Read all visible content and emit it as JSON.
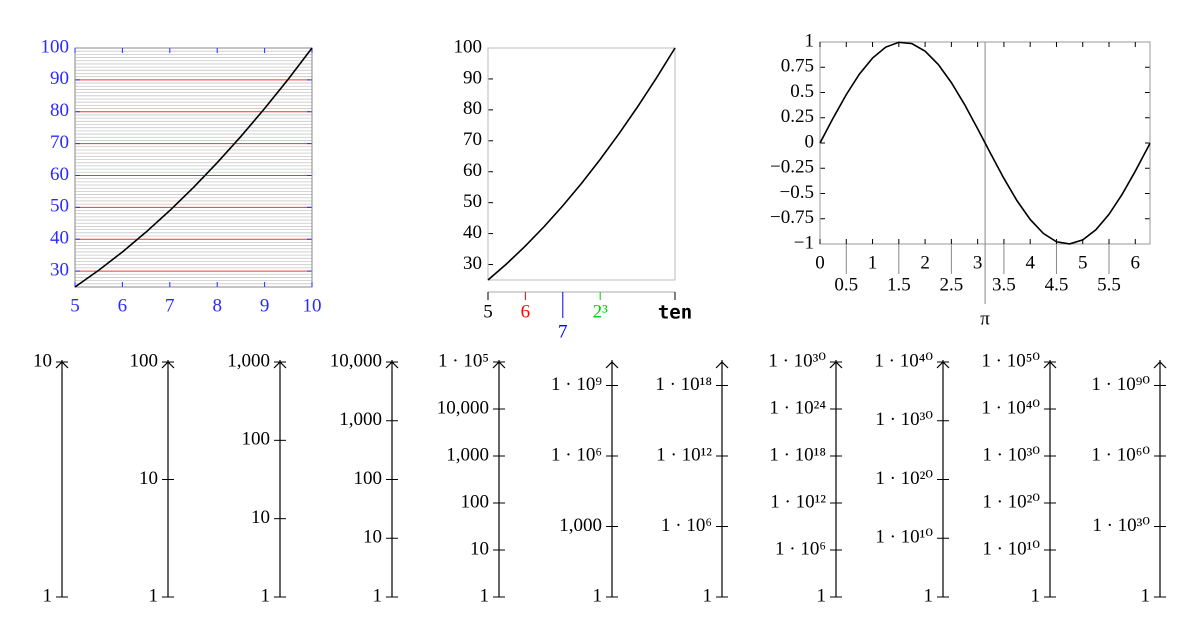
{
  "chart_data": [
    {
      "type": "line",
      "x": [
        5,
        5.5,
        6,
        6.5,
        7,
        7.5,
        8,
        8.5,
        9,
        9.5,
        10
      ],
      "values": [
        25,
        30.25,
        36,
        42.25,
        49,
        56.25,
        64,
        72.25,
        81,
        90.25,
        100
      ],
      "color": "#000000",
      "xlim": [
        5,
        10
      ],
      "ylim": [
        25,
        100
      ],
      "xticks": [
        5,
        6,
        7,
        8,
        9,
        10
      ],
      "yticks": [
        30,
        40,
        50,
        60,
        70,
        80,
        90,
        100
      ],
      "grid": true,
      "grid_color": "#ff3030",
      "minor_grid": true,
      "minor_grid_color": "#c8c8c8",
      "tick_color": "#2a2aff"
    },
    {
      "type": "line",
      "x": [
        5,
        5.5,
        6,
        6.5,
        7,
        7.5,
        8,
        8.5,
        9,
        9.5,
        10
      ],
      "values": [
        25,
        30.25,
        36,
        42.25,
        49,
        56.25,
        64,
        72.25,
        81,
        90.25,
        100
      ],
      "color": "#000000",
      "xlim": [
        5,
        10
      ],
      "ylim": [
        25,
        100
      ],
      "xticks": [
        5,
        6,
        7,
        {
          "value": 8,
          "label": "2³"
        },
        {
          "value": 10,
          "label": "ten"
        }
      ],
      "yticks": [
        30,
        40,
        50,
        60,
        70,
        80,
        90,
        100
      ],
      "xtick_colors": [
        "#000000",
        "#ff0000",
        "#0000ff",
        "#00cc00",
        "#000000"
      ],
      "xtick_bold": [
        false,
        false,
        false,
        false,
        true
      ],
      "grid": false
    },
    {
      "type": "line",
      "x": [
        0,
        0.25,
        0.5,
        0.75,
        1,
        1.25,
        1.5,
        1.75,
        2,
        2.25,
        2.5,
        2.75,
        3,
        3.25,
        3.5,
        3.75,
        4,
        4.25,
        4.5,
        4.75,
        5,
        5.25,
        5.5,
        5.75,
        6,
        6.25,
        6.28
      ],
      "values": [
        0,
        0.247,
        0.479,
        0.682,
        0.841,
        0.949,
        0.997,
        0.984,
        0.909,
        0.778,
        0.598,
        0.382,
        0.141,
        -0.108,
        -0.351,
        -0.572,
        -0.757,
        -0.895,
        -0.978,
        -0.999,
        -0.959,
        -0.859,
        -0.706,
        -0.508,
        -0.279,
        -0.033,
        -0.003
      ],
      "color": "#000000",
      "xlim": [
        0,
        6.28
      ],
      "ylim": [
        -1,
        1
      ],
      "xticks": [
        0,
        0.5,
        1,
        1.5,
        2,
        2.5,
        3,
        3.5,
        4,
        4.5,
        5,
        5.5,
        6
      ],
      "extra_xticks": [
        {
          "value": 3.14159,
          "label": "π"
        }
      ],
      "yticks": [
        {
          "value": -1,
          "label": "−1"
        },
        {
          "value": -0.75,
          "label": "−0.75"
        },
        {
          "value": -0.5,
          "label": "−0.5"
        },
        {
          "value": -0.25,
          "label": "−0.25"
        },
        0,
        0.25,
        0.5,
        0.75,
        1
      ],
      "grid": false
    },
    {
      "type": "axis",
      "yscale": "log",
      "ylim": [
        1,
        10
      ],
      "yticks": [
        1,
        10
      ]
    },
    {
      "type": "axis",
      "yscale": "log",
      "ylim": [
        1,
        100
      ],
      "yticks": [
        1,
        10,
        100
      ]
    },
    {
      "type": "axis",
      "yscale": "log",
      "ylim": [
        1,
        1000
      ],
      "yticks": [
        1,
        10,
        100,
        {
          "value": 1000,
          "label": "1,000"
        }
      ]
    },
    {
      "type": "axis",
      "yscale": "log",
      "ylim": [
        1,
        10000
      ],
      "yticks": [
        1,
        10,
        100,
        {
          "value": 1000,
          "label": "1,000"
        },
        {
          "value": 10000,
          "label": "10,000"
        }
      ]
    },
    {
      "type": "axis",
      "yscale": "log",
      "ylim": [
        1,
        100000
      ],
      "yticks": [
        1,
        10,
        100,
        {
          "value": 1000,
          "label": "1,000"
        },
        {
          "value": 10000,
          "label": "10,000"
        },
        {
          "value": 100000,
          "label": "1 · 10⁵"
        }
      ]
    },
    {
      "type": "axis",
      "yscale": "log",
      "ylim": [
        1,
        10000000000.0
      ],
      "yticks": [
        1,
        {
          "value": 1000,
          "label": "1,000"
        },
        {
          "value": 1000000.0,
          "label": "1 · 10⁶"
        },
        {
          "value": 1000000000.0,
          "label": "1 · 10⁹"
        }
      ]
    },
    {
      "type": "axis",
      "yscale": "log",
      "ylim": [
        1,
        1e+20
      ],
      "yticks": [
        1,
        {
          "value": 1000000.0,
          "label": "1 · 10⁶"
        },
        {
          "value": 1000000000000.0,
          "label": "1 · 10¹²"
        },
        {
          "value": 1e+18,
          "label": "1 · 10¹⁸"
        }
      ]
    },
    {
      "type": "axis",
      "yscale": "log",
      "ylim": [
        1,
        1e+30
      ],
      "yticks": [
        1,
        {
          "value": 1000000.0,
          "label": "1 · 10⁶"
        },
        {
          "value": 1000000000000.0,
          "label": "1 · 10¹²"
        },
        {
          "value": 1e+18,
          "label": "1 · 10¹⁸"
        },
        {
          "value": 1e+24,
          "label": "1 · 10²⁴"
        },
        {
          "value": 1e+30,
          "label": "1 · 10³⁰"
        }
      ]
    },
    {
      "type": "axis",
      "yscale": "log",
      "ylim": [
        1,
        1e+40
      ],
      "yticks": [
        1,
        {
          "value": 10000000000.0,
          "label": "1 · 10¹⁰"
        },
        {
          "value": 1e+20,
          "label": "1 · 10²⁰"
        },
        {
          "value": 1e+30,
          "label": "1 · 10³⁰"
        },
        {
          "value": 1e+40,
          "label": "1 · 10⁴⁰"
        }
      ]
    },
    {
      "type": "axis",
      "yscale": "log",
      "ylim": [
        1,
        1e+50
      ],
      "yticks": [
        1,
        {
          "value": 10000000000.0,
          "label": "1 · 10¹⁰"
        },
        {
          "value": 1e+20,
          "label": "1 · 10²⁰"
        },
        {
          "value": 1e+30,
          "label": "1 · 10³⁰"
        },
        {
          "value": 1e+40,
          "label": "1 · 10⁴⁰"
        },
        {
          "value": 1e+50,
          "label": "1 · 10⁵⁰"
        }
      ]
    },
    {
      "type": "axis",
      "yscale": "log",
      "ylim": [
        1,
        1e+100
      ],
      "yticks": [
        1,
        {
          "value": 1e+30,
          "label": "1 · 10³⁰"
        },
        {
          "value": 1e+60,
          "label": "1 · 10⁶⁰"
        },
        {
          "value": 1e+90,
          "label": "1 · 10⁹⁰"
        }
      ]
    }
  ]
}
